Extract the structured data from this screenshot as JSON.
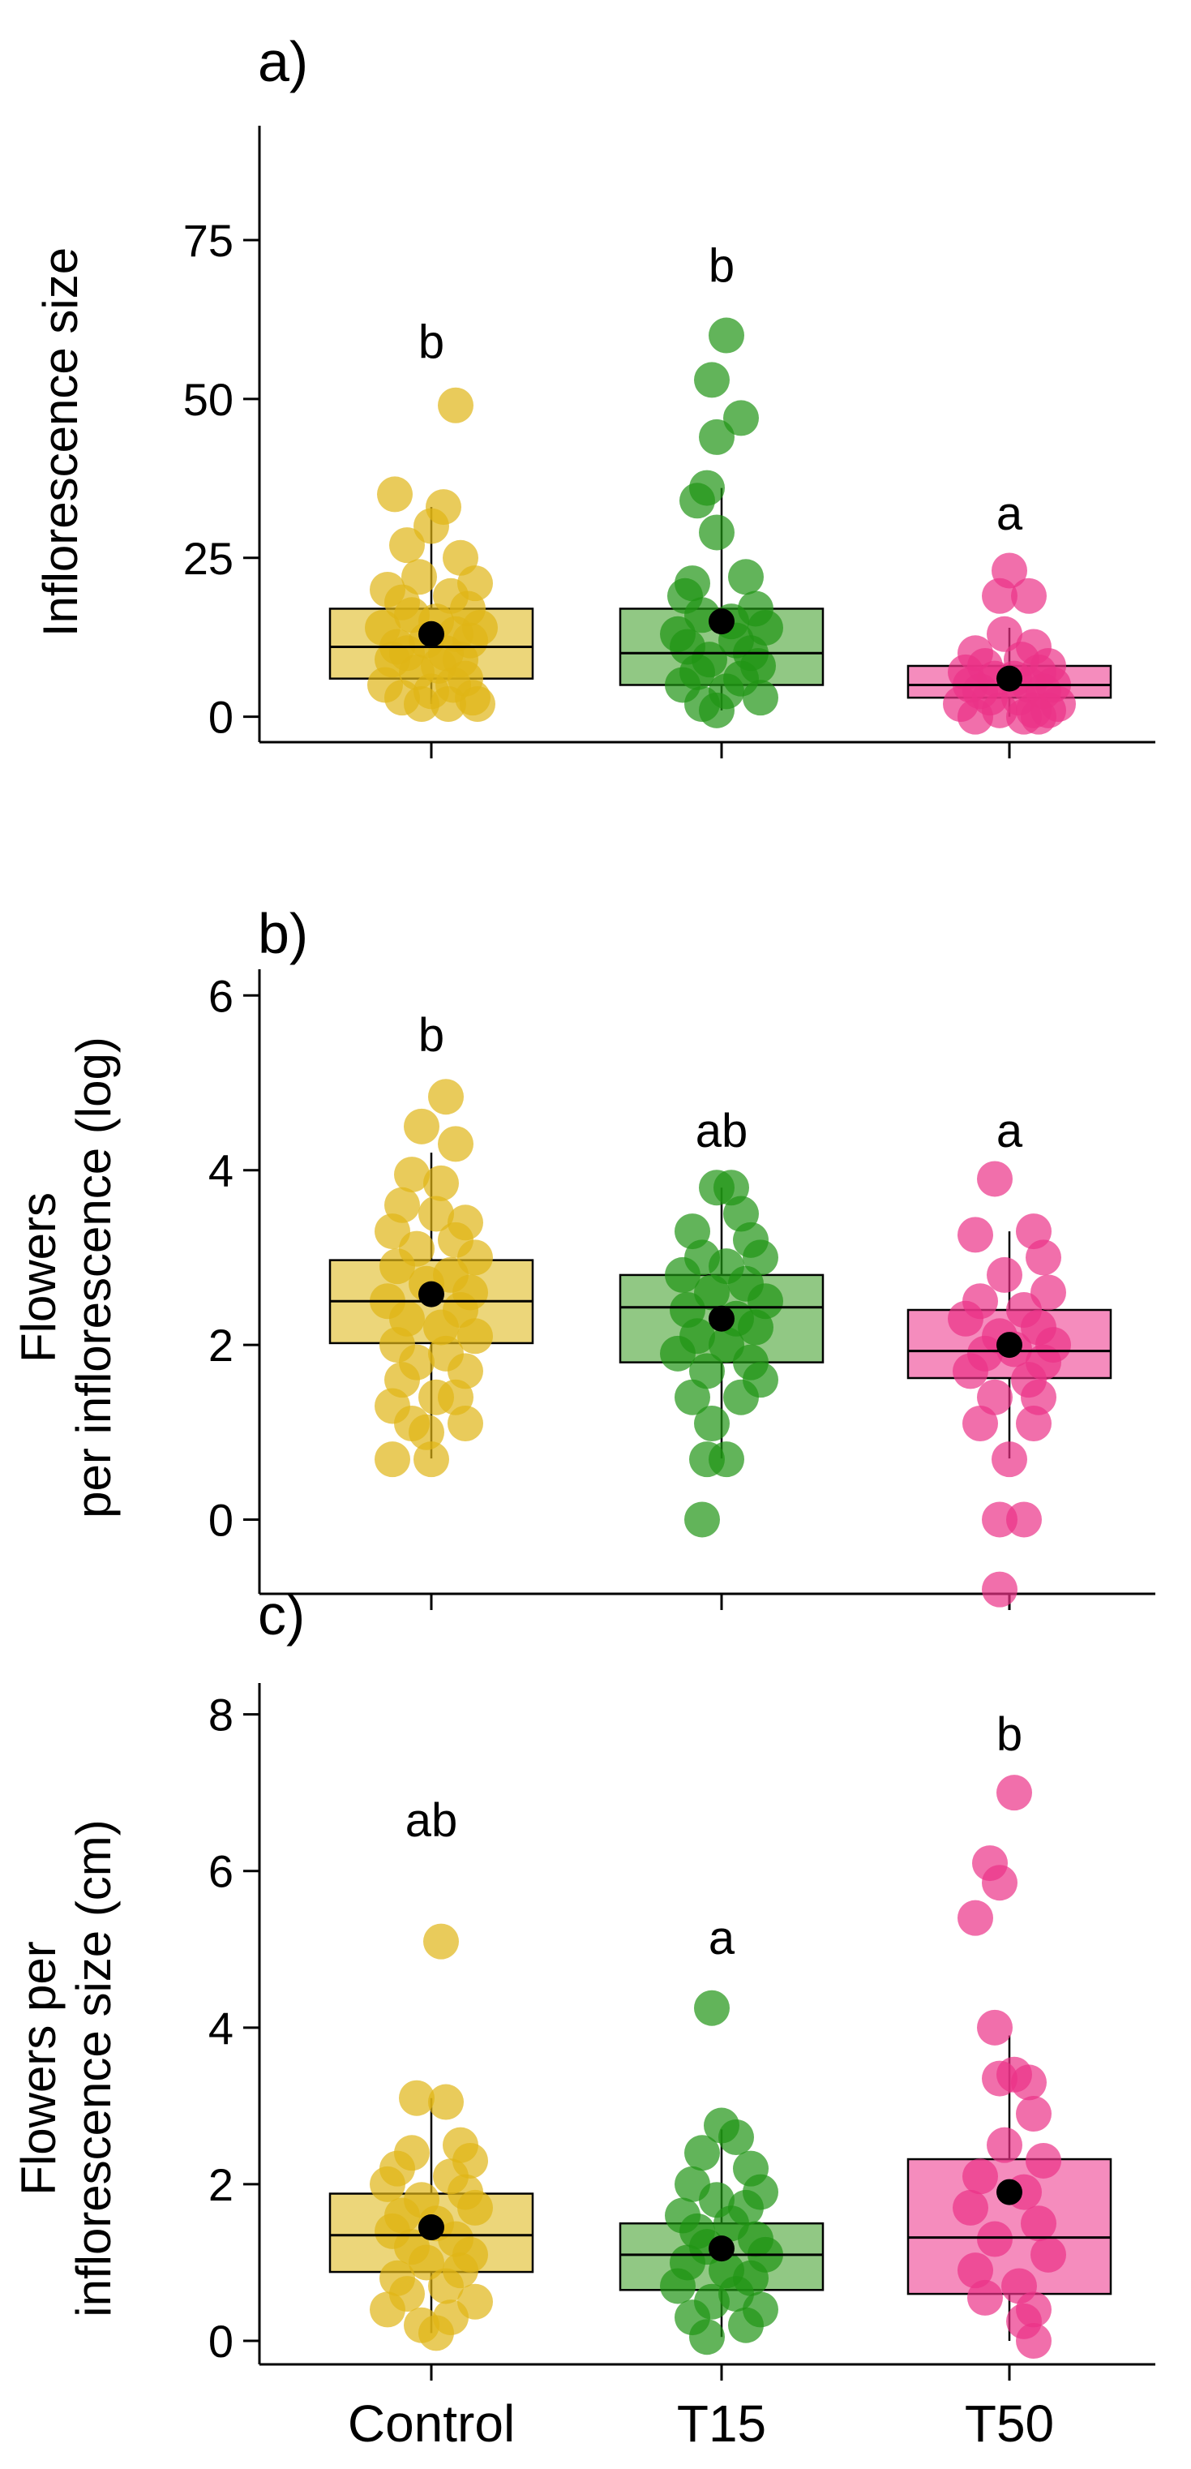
{
  "colors": {
    "Control": {
      "point": "#e0b516",
      "box": "#ecd67a"
    },
    "T15": {
      "point": "#1f9414",
      "box": "#91c884"
    },
    "T50": {
      "point": "#eb3288",
      "box": "#f58cbd"
    },
    "mean": "#000000"
  },
  "chart_data": [
    {
      "type": "boxplot",
      "panel": "a)",
      "title": "",
      "xlabel": "",
      "ylabel": "Inflorescence size",
      "ylim": [
        -4,
        93
      ],
      "yticks": [
        0,
        25,
        50,
        75
      ],
      "ytick_labels": [
        "0",
        "25",
        "50",
        "75"
      ],
      "categories": [
        "Control",
        "T15",
        "T50"
      ],
      "show_xtick_labels": false,
      "letters": [
        "b",
        "b",
        "a"
      ],
      "letter_y": [
        59,
        71,
        32
      ],
      "boxes": [
        {
          "q1": 6,
          "median": 11,
          "q3": 17,
          "whisker_low": 2,
          "whisker_high": 33,
          "mean": 13
        },
        {
          "q1": 5,
          "median": 10,
          "q3": 17,
          "whisker_low": 1,
          "whisker_high": 36,
          "mean": 15
        },
        {
          "q1": 3,
          "median": 5,
          "q3": 8,
          "whisker_low": 0,
          "whisker_high": 14,
          "mean": 6
        }
      ],
      "points": [
        [
          49,
          35,
          33,
          30,
          27,
          25,
          22,
          21,
          20,
          19,
          18,
          17,
          16,
          15,
          14,
          14,
          13,
          12,
          12,
          11,
          10,
          10,
          9,
          9,
          8,
          7,
          6,
          5,
          5,
          4,
          3,
          3,
          2,
          2,
          2
        ],
        [
          60,
          53,
          47,
          44,
          36,
          34,
          29,
          22,
          21,
          19,
          17,
          16,
          15,
          14,
          13,
          12,
          11,
          10,
          9,
          8,
          7,
          6,
          5,
          4,
          3,
          2,
          1
        ],
        [
          23,
          19,
          19,
          13,
          11,
          10,
          9,
          8,
          8,
          7,
          7,
          6,
          6,
          5,
          5,
          5,
          4,
          4,
          3,
          3,
          2,
          2,
          1,
          1,
          1,
          0,
          0,
          0
        ]
      ],
      "jitter": [
        [
          0.1,
          -0.15,
          0.05,
          0.0,
          -0.1,
          0.12,
          -0.05,
          0.18,
          -0.18,
          0.08,
          -0.12,
          0.15,
          -0.08,
          0.02,
          0.2,
          -0.2,
          0.1,
          -0.02,
          0.16,
          -0.14,
          0.06,
          -0.1,
          0.12,
          -0.16,
          0.03,
          -0.06,
          0.14,
          -0.19,
          0.09,
          0.0,
          0.17,
          -0.12,
          0.07,
          -0.04,
          0.19
        ],
        [
          0.02,
          -0.04,
          0.08,
          -0.02,
          -0.06,
          -0.1,
          -0.02,
          0.1,
          -0.12,
          -0.15,
          0.14,
          -0.08,
          0.04,
          0.18,
          -0.18,
          0.06,
          -0.14,
          0.12,
          -0.05,
          0.15,
          -0.1,
          0.08,
          -0.16,
          0.02,
          0.16,
          -0.08,
          -0.02
        ],
        [
          0.0,
          -0.04,
          0.08,
          -0.02,
          0.1,
          -0.14,
          0.05,
          -0.1,
          0.16,
          -0.18,
          0.12,
          -0.06,
          0.02,
          -0.16,
          0.18,
          0.08,
          -0.12,
          0.14,
          -0.08,
          0.04,
          0.2,
          -0.2,
          0.1,
          -0.04,
          0.16,
          -0.14,
          0.06,
          0.12
        ]
      ]
    },
    {
      "type": "boxplot",
      "panel": "b)",
      "title": "",
      "xlabel": "",
      "ylabel": [
        "Flowers",
        "per inflorescence (log)"
      ],
      "ylim": [
        -0.85,
        6.3
      ],
      "yticks": [
        0,
        2,
        4,
        6
      ],
      "ytick_labels": [
        "0",
        "2",
        "4",
        "6"
      ],
      "categories": [
        "Control",
        "T15",
        "T50"
      ],
      "show_xtick_labels": false,
      "letters": [
        "b",
        "ab",
        "a"
      ],
      "letter_y": [
        5.55,
        4.45,
        4.45
      ],
      "boxes": [
        {
          "q1": 2.02,
          "median": 2.5,
          "q3": 2.97,
          "whisker_low": 0.7,
          "whisker_high": 4.2,
          "mean": 2.58
        },
        {
          "q1": 1.8,
          "median": 2.43,
          "q3": 2.8,
          "whisker_low": 0.7,
          "whisker_high": 3.8,
          "mean": 2.3
        },
        {
          "q1": 1.62,
          "median": 1.93,
          "q3": 2.4,
          "whisker_low": 0.7,
          "whisker_high": 3.3,
          "mean": 2.0
        }
      ],
      "points": [
        [
          4.84,
          4.5,
          4.3,
          3.95,
          3.85,
          3.6,
          3.5,
          3.4,
          3.3,
          3.2,
          3.1,
          3.0,
          2.9,
          2.8,
          2.7,
          2.6,
          2.5,
          2.4,
          2.3,
          2.2,
          2.1,
          2.0,
          1.9,
          1.8,
          1.7,
          1.6,
          1.4,
          1.4,
          1.3,
          1.1,
          1.1,
          1.0,
          0.69,
          0.69
        ],
        [
          3.8,
          3.8,
          3.5,
          3.3,
          3.2,
          3.0,
          3.0,
          2.9,
          2.8,
          2.7,
          2.6,
          2.5,
          2.4,
          2.3,
          2.2,
          2.1,
          2.0,
          1.9,
          1.8,
          1.7,
          1.6,
          1.4,
          1.4,
          1.1,
          0.69,
          0.69,
          0.0
        ],
        [
          3.9,
          3.3,
          3.26,
          3.0,
          2.8,
          2.6,
          2.5,
          2.4,
          2.3,
          2.2,
          2.1,
          2.0,
          1.95,
          1.9,
          1.8,
          1.7,
          1.6,
          1.4,
          1.4,
          1.1,
          1.1,
          0.69,
          0.0,
          0.0,
          -0.8
        ]
      ],
      "jitter": [
        [
          0.06,
          -0.04,
          0.1,
          -0.08,
          0.04,
          -0.12,
          0.02,
          0.14,
          -0.16,
          0.1,
          -0.06,
          0.18,
          -0.14,
          0.08,
          -0.02,
          0.16,
          -0.18,
          0.12,
          -0.1,
          0.04,
          0.18,
          -0.14,
          0.06,
          -0.06,
          0.14,
          -0.12,
          0.02,
          0.1,
          -0.16,
          -0.08,
          0.14,
          -0.02,
          0.0,
          -0.16
        ],
        [
          -0.02,
          0.04,
          0.08,
          -0.12,
          0.12,
          -0.08,
          0.16,
          0.02,
          -0.16,
          0.1,
          -0.04,
          0.18,
          -0.14,
          0.06,
          0.14,
          -0.1,
          0.02,
          -0.18,
          0.12,
          -0.06,
          0.16,
          -0.12,
          0.08,
          -0.04,
          -0.06,
          0.02,
          -0.08
        ],
        [
          -0.06,
          0.1,
          -0.14,
          0.14,
          -0.02,
          0.16,
          -0.12,
          0.06,
          -0.18,
          0.12,
          -0.04,
          0.18,
          0.02,
          -0.1,
          0.14,
          -0.16,
          0.08,
          -0.06,
          0.12,
          -0.12,
          0.1,
          0.0,
          -0.04,
          0.06,
          -0.04
        ]
      ]
    },
    {
      "type": "boxplot",
      "panel": "c)",
      "title": "",
      "xlabel": "",
      "ylabel": [
        "Flowers per",
        "inflorescence size (cm)"
      ],
      "ylim": [
        -0.3,
        8.4
      ],
      "yticks": [
        0,
        2,
        4,
        6,
        8
      ],
      "ytick_labels": [
        "0",
        "2",
        "4",
        "6",
        "8"
      ],
      "categories": [
        "Control",
        "T15",
        "T50"
      ],
      "show_xtick_labels": true,
      "letters": [
        "ab",
        "a",
        "b"
      ],
      "letter_y": [
        6.65,
        5.15,
        7.75
      ],
      "boxes": [
        {
          "q1": 0.88,
          "median": 1.35,
          "q3": 1.88,
          "whisker_low": 0.1,
          "whisker_high": 3.1,
          "mean": 1.45
        },
        {
          "q1": 0.65,
          "median": 1.1,
          "q3": 1.5,
          "whisker_low": 0.05,
          "whisker_high": 2.7,
          "mean": 1.18
        },
        {
          "q1": 0.6,
          "median": 1.32,
          "q3": 2.32,
          "whisker_low": 0.0,
          "whisker_high": 3.9,
          "mean": 1.9
        }
      ],
      "points": [
        [
          5.1,
          3.1,
          3.05,
          2.5,
          2.4,
          2.3,
          2.2,
          2.1,
          2.0,
          1.9,
          1.8,
          1.7,
          1.6,
          1.5,
          1.4,
          1.3,
          1.2,
          1.1,
          1.0,
          0.9,
          0.8,
          0.7,
          0.6,
          0.5,
          0.4,
          0.3,
          0.2,
          0.1
        ],
        [
          4.25,
          2.75,
          2.6,
          2.4,
          2.2,
          2.0,
          1.9,
          1.8,
          1.7,
          1.6,
          1.5,
          1.4,
          1.3,
          1.2,
          1.1,
          1.0,
          0.9,
          0.8,
          0.7,
          0.6,
          0.5,
          0.4,
          0.3,
          0.2,
          0.05
        ],
        [
          7.0,
          6.1,
          5.85,
          5.4,
          4.0,
          3.4,
          3.35,
          3.3,
          2.9,
          2.5,
          2.3,
          2.1,
          1.9,
          1.7,
          1.5,
          1.3,
          1.1,
          0.9,
          0.7,
          0.55,
          0.4,
          0.25,
          0.0
        ]
      ],
      "jitter": [
        [
          0.04,
          -0.06,
          0.06,
          0.12,
          -0.08,
          0.16,
          -0.14,
          0.08,
          -0.18,
          0.14,
          -0.04,
          0.18,
          -0.12,
          0.02,
          -0.16,
          0.1,
          -0.08,
          0.16,
          -0.02,
          0.12,
          -0.14,
          0.06,
          -0.1,
          0.18,
          -0.18,
          0.08,
          -0.04,
          0.02
        ],
        [
          -0.04,
          0.0,
          0.06,
          -0.08,
          0.12,
          -0.12,
          0.16,
          -0.02,
          0.1,
          -0.16,
          0.04,
          -0.1,
          0.14,
          -0.06,
          0.18,
          -0.14,
          0.02,
          0.12,
          -0.18,
          0.06,
          -0.04,
          0.16,
          -0.12,
          0.1,
          -0.06
        ],
        [
          0.02,
          -0.08,
          -0.04,
          -0.14,
          -0.06,
          0.02,
          -0.04,
          0.08,
          0.1,
          -0.02,
          0.14,
          -0.12,
          0.06,
          -0.16,
          0.12,
          -0.06,
          0.16,
          -0.14,
          0.04,
          -0.1,
          0.1,
          0.06,
          0.1
        ]
      ]
    }
  ]
}
